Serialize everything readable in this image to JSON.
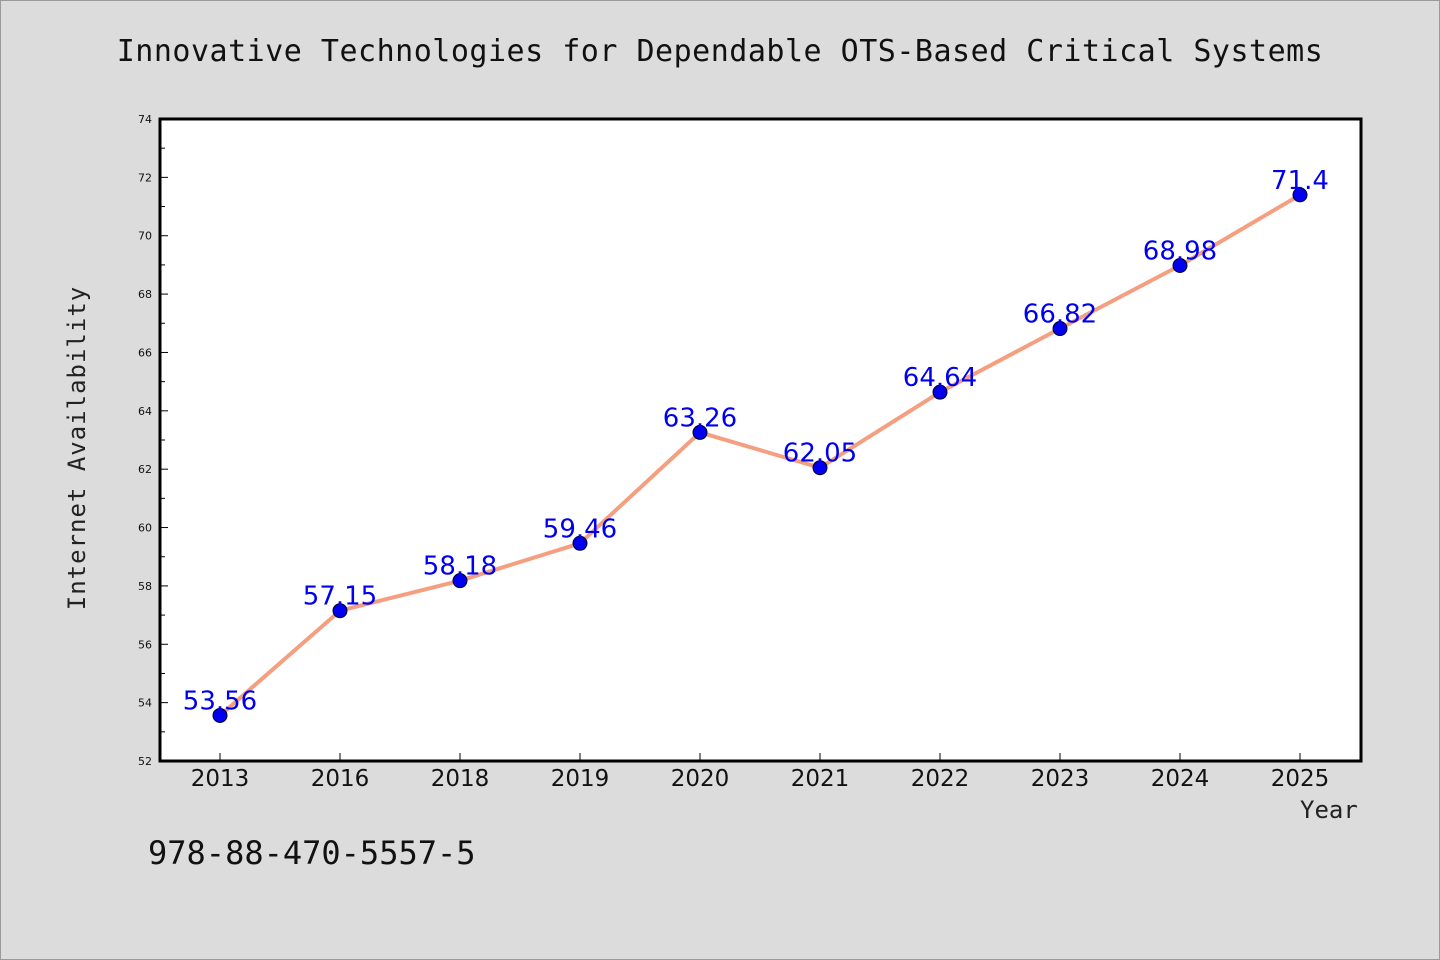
{
  "chart_data": {
    "type": "line",
    "title": "Innovative Technologies for Dependable OTS-Based Critical Systems",
    "xlabel": "Year",
    "ylabel": "Internet Availability",
    "categories": [
      "2013",
      "2016",
      "2018",
      "2019",
      "2020",
      "2021",
      "2022",
      "2023",
      "2024",
      "2025"
    ],
    "series": [
      {
        "values": [
          53.56,
          57.15,
          58.18,
          59.46,
          63.26,
          62.05,
          64.64,
          66.82,
          68.98,
          71.4
        ],
        "labels": [
          "53.56",
          "57.15",
          "58.18",
          "59.46",
          "63.26",
          "62.05",
          "64.64",
          "66.82",
          "68.98",
          "71.4"
        ],
        "line_color": "#f4a080",
        "marker_color": "#0000ee"
      }
    ],
    "ylim": [
      52,
      74
    ],
    "yticks": [
      "52",
      "54",
      "56",
      "58",
      "60",
      "62",
      "64",
      "66",
      "68",
      "70",
      "72",
      "74"
    ],
    "grid": false
  },
  "footer": {
    "isbn": "978-88-470-5557-5"
  }
}
